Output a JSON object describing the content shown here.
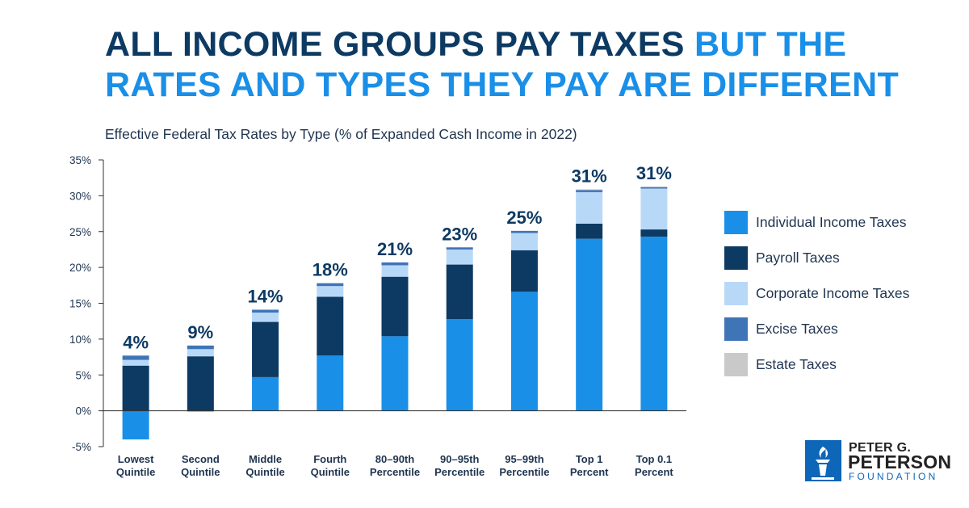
{
  "title": {
    "part1": "ALL INCOME GROUPS PAY TAXES",
    "part2": "BUT THE RATES AND TYPES THEY PAY ARE DIFFERENT"
  },
  "subtitle": "Effective Federal Tax Rates by Type (% of Expanded Cash Income in 2022)",
  "colors": {
    "title_dark": "#0d3a63",
    "title_accent": "#1a8fe8"
  },
  "logo": {
    "line1": "PETER G.",
    "line2": "PETERSON",
    "line3": "FOUNDATION",
    "icon": "torch-logo-icon"
  },
  "chart_data": {
    "type": "bar",
    "stacked": true,
    "title": "Effective Federal Tax Rates by Type (% of Expanded Cash Income in 2022)",
    "ylim": [
      -5,
      35
    ],
    "yticks": [
      -5,
      0,
      5,
      10,
      15,
      20,
      25,
      30,
      35
    ],
    "ytick_labels": [
      "-5%",
      "0%",
      "5%",
      "10%",
      "15%",
      "20%",
      "25%",
      "30%",
      "35%"
    ],
    "grid": false,
    "legend_position": "right",
    "categories": [
      [
        "Lowest",
        "Quintile"
      ],
      [
        "Second",
        "Quintile"
      ],
      [
        "Middle",
        "Quintile"
      ],
      [
        "Fourth",
        "Quintile"
      ],
      [
        "80–90th",
        "Percentile"
      ],
      [
        "90–95th",
        "Percentile"
      ],
      [
        "95–99th",
        "Percentile"
      ],
      [
        "Top 1",
        "Percent"
      ],
      [
        "Top 0.1",
        "Percent"
      ]
    ],
    "totals_labels": [
      "4%",
      "9%",
      "14%",
      "18%",
      "21%",
      "23%",
      "25%",
      "31%",
      "31%"
    ],
    "series": [
      {
        "name": "Individual Income Taxes",
        "color": "#1a8fe8",
        "values": [
          -4.0,
          -0.1,
          4.7,
          7.7,
          10.4,
          12.8,
          16.6,
          24.0,
          24.3
        ]
      },
      {
        "name": "Payroll Taxes",
        "color": "#0d3a63",
        "values": [
          6.3,
          7.6,
          7.7,
          8.2,
          8.3,
          7.6,
          5.8,
          2.1,
          1.0
        ]
      },
      {
        "name": "Corporate Income Taxes",
        "color": "#b8d8f8",
        "values": [
          0.8,
          1.0,
          1.3,
          1.5,
          1.6,
          2.1,
          2.4,
          4.4,
          5.7
        ]
      },
      {
        "name": "Excise Taxes",
        "color": "#3f74b7",
        "values": [
          0.6,
          0.5,
          0.4,
          0.4,
          0.4,
          0.3,
          0.3,
          0.3,
          0.2
        ]
      },
      {
        "name": "Estate Taxes",
        "color": "#c9c9c9",
        "values": [
          0.0,
          0.0,
          0.0,
          0.0,
          0.0,
          0.0,
          0.0,
          0.1,
          0.1
        ]
      }
    ]
  }
}
